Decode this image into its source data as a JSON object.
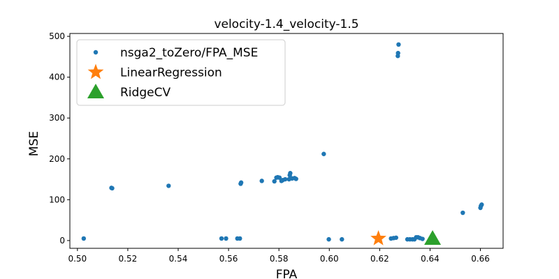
{
  "chart_data": {
    "type": "scatter",
    "title": "velocity-1.4_velocity-1.5",
    "xlabel": "FPA",
    "ylabel": "MSE",
    "xlim": [
      0.497,
      0.669
    ],
    "ylim": [
      -19,
      507
    ],
    "xticks": [
      "0.50",
      "0.52",
      "0.54",
      "0.56",
      "0.58",
      "0.60",
      "0.62",
      "0.64",
      "0.66"
    ],
    "yticks": [
      "0",
      "100",
      "200",
      "300",
      "400",
      "500"
    ],
    "legend_position": "upper-left",
    "grid": false,
    "colors": {
      "series0": "#1f77b4",
      "series1": "#ff7f0e",
      "series2": "#2ca02c"
    },
    "series": [
      {
        "name": "nsga2_toZero/FPA_MSE",
        "marker": "dot",
        "points": [
          [
            0.5025,
            5
          ],
          [
            0.5135,
            129
          ],
          [
            0.5138,
            128
          ],
          [
            0.5362,
            134
          ],
          [
            0.5572,
            5
          ],
          [
            0.559,
            5
          ],
          [
            0.5635,
            5
          ],
          [
            0.5645,
            5
          ],
          [
            0.5648,
            139
          ],
          [
            0.565,
            142
          ],
          [
            0.5732,
            146
          ],
          [
            0.5782,
            145
          ],
          [
            0.579,
            154
          ],
          [
            0.5795,
            155
          ],
          [
            0.5802,
            154
          ],
          [
            0.581,
            146
          ],
          [
            0.5815,
            148
          ],
          [
            0.5825,
            150
          ],
          [
            0.584,
            150
          ],
          [
            0.5843,
            160
          ],
          [
            0.5845,
            165
          ],
          [
            0.5852,
            152
          ],
          [
            0.5862,
            153
          ],
          [
            0.5868,
            151
          ],
          [
            0.5978,
            212
          ],
          [
            0.5998,
            3
          ],
          [
            0.605,
            3
          ],
          [
            0.6245,
            5
          ],
          [
            0.6255,
            6
          ],
          [
            0.6265,
            7
          ],
          [
            0.6272,
            452
          ],
          [
            0.6273,
            459
          ],
          [
            0.6275,
            480
          ],
          [
            0.631,
            3
          ],
          [
            0.632,
            3
          ],
          [
            0.633,
            3
          ],
          [
            0.6338,
            3
          ],
          [
            0.6345,
            8
          ],
          [
            0.6352,
            8
          ],
          [
            0.636,
            6
          ],
          [
            0.637,
            4
          ],
          [
            0.653,
            68
          ],
          [
            0.66,
            80
          ],
          [
            0.6602,
            85
          ],
          [
            0.6605,
            88
          ]
        ]
      },
      {
        "name": "LinearRegression",
        "marker": "star",
        "points": [
          [
            0.6195,
            5
          ]
        ]
      },
      {
        "name": "RidgeCV",
        "marker": "triangle",
        "points": [
          [
            0.641,
            5
          ]
        ]
      }
    ]
  }
}
